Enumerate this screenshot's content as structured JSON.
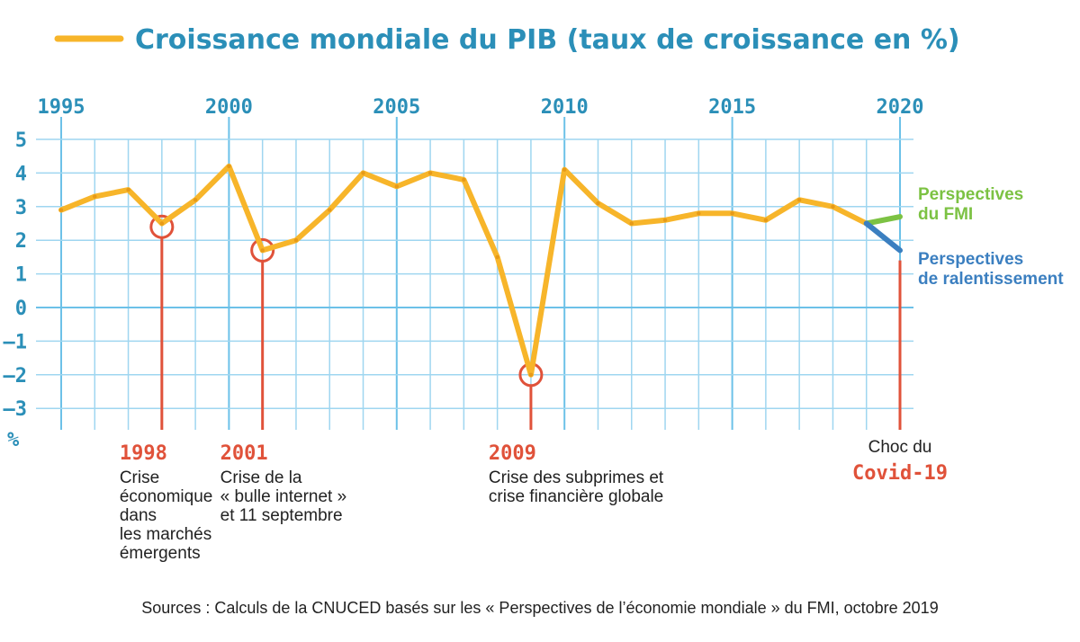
{
  "title": "Croissance mondiale du PIB (taux de croissance en %)",
  "legend_line_color": "#f7b52a",
  "unit_label": "%",
  "colors": {
    "main": "#f7b52a",
    "grid": "#9fd6f0",
    "grid_major": "#6cc1e8",
    "axis_text": "#2b8fb8",
    "event": "#e0523a",
    "fmi": "#7cc243",
    "slowdown": "#3b7fc0"
  },
  "chart_data": {
    "type": "line",
    "title": "Croissance mondiale du PIB (taux de croissance en %)",
    "xlim": [
      1995,
      2020
    ],
    "ylim": [
      -3.4,
      5
    ],
    "x_ticks": [
      1995,
      2000,
      2005,
      2010,
      2015,
      2020
    ],
    "y_ticks": [
      5,
      4,
      3,
      2,
      1,
      0,
      -1,
      -2,
      -3
    ],
    "y_tick_labels": [
      "5",
      "4",
      "3",
      "2",
      "1",
      "0",
      "–1",
      "–2",
      "–3"
    ],
    "grid": true,
    "series": [
      {
        "name": "Croissance mondiale du PIB (taux de croissance en %)",
        "color": "#f7b52a",
        "x": [
          1995,
          1996,
          1997,
          1998,
          1999,
          2000,
          2001,
          2002,
          2003,
          2004,
          2005,
          2006,
          2007,
          2008,
          2009,
          2010,
          2011,
          2012,
          2013,
          2014,
          2015,
          2016,
          2017,
          2018,
          2019
        ],
        "y": [
          2.9,
          3.3,
          3.5,
          2.5,
          3.2,
          4.2,
          1.7,
          2.0,
          2.9,
          4.0,
          3.6,
          4.0,
          3.8,
          1.5,
          -2.0,
          4.1,
          3.1,
          2.5,
          2.6,
          2.8,
          2.8,
          2.6,
          3.2,
          3.0,
          2.5
        ]
      },
      {
        "name": "Perspectives du FMI",
        "color": "#7cc243",
        "x": [
          2019,
          2020
        ],
        "y": [
          2.5,
          2.7
        ]
      },
      {
        "name": "Perspectives de ralentissement",
        "color": "#3b7fc0",
        "x": [
          2019,
          2020
        ],
        "y": [
          2.5,
          1.7
        ]
      }
    ]
  },
  "legend": {
    "fmi_lines": [
      "Perspectives",
      "du FMI"
    ],
    "slow_lines": [
      "Perspectives",
      "de ralentissement"
    ]
  },
  "events": [
    {
      "x": 1998,
      "y": 2.4,
      "circle": true,
      "year": "1998",
      "desc": [
        "Crise",
        "économique",
        "dans",
        "les marchés",
        "émergents"
      ]
    },
    {
      "x": 2001,
      "y": 1.7,
      "circle": true,
      "year": "2001",
      "desc": [
        "Crise de la",
        "« bulle internet »",
        "et 11 septembre"
      ]
    },
    {
      "x": 2009,
      "y": -2.0,
      "circle": true,
      "year": "2009",
      "desc": [
        "Crise des subprimes et",
        "crise financière globale"
      ]
    },
    {
      "x": 2020,
      "y": 1.4,
      "circle": false,
      "year": "Covid-19",
      "pre": "Choc du",
      "desc": []
    }
  ],
  "source": "Sources : Calculs de la CNUCED basés sur les « Perspectives de l’économie mondiale » du FMI, octobre 2019"
}
